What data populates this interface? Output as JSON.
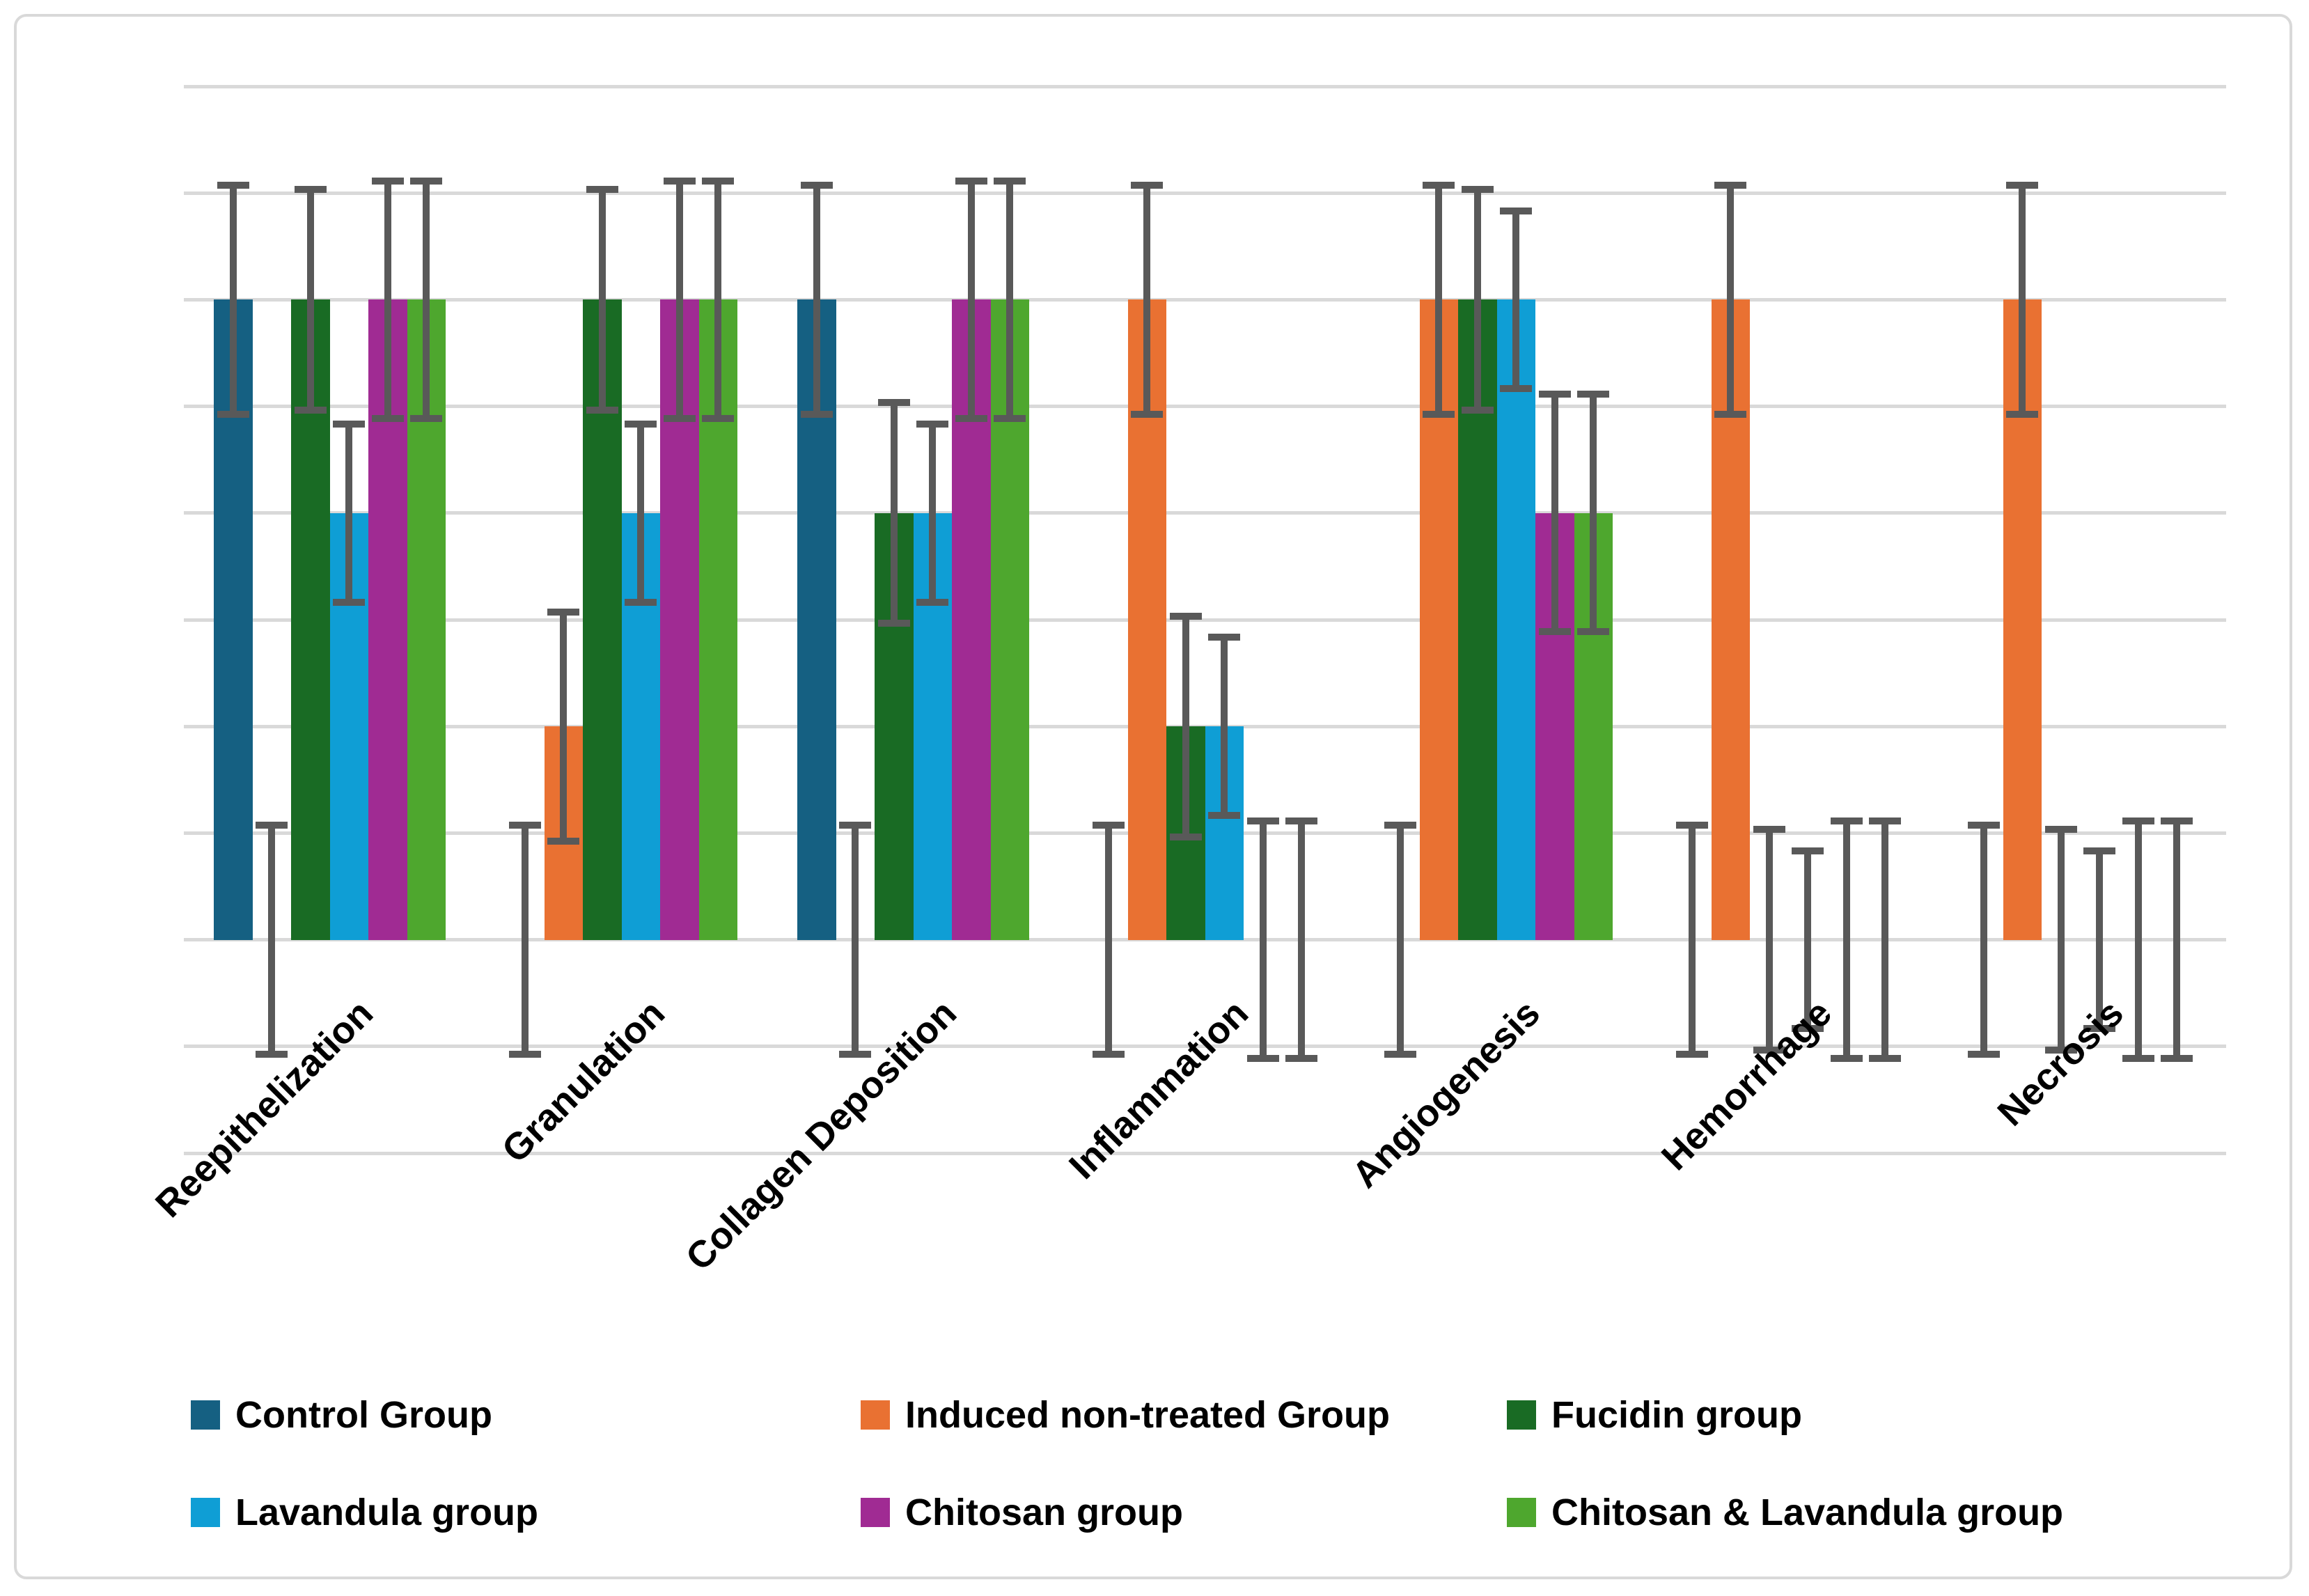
{
  "chart_data": {
    "type": "bar",
    "title": "",
    "xlabel": "",
    "ylabel": "",
    "categories": [
      "Reepithelization",
      "Granulation",
      "Collagen Deposition",
      "Inflammation",
      "Angiogenesis",
      "Hemorrhage",
      "Necrosis"
    ],
    "series": [
      {
        "name": "Control Group",
        "color": "#156082",
        "values": [
          3,
          0,
          3,
          0,
          0,
          0,
          0
        ],
        "errors": [
          0.55,
          0.55,
          0.55,
          0.55,
          0.55,
          0.55,
          0.55
        ]
      },
      {
        "name": "Induced non-treated Group",
        "color": "#E97132",
        "values": [
          0,
          1,
          0,
          3,
          3,
          3,
          3
        ],
        "errors": [
          0.55,
          0.55,
          0.55,
          0.55,
          0.55,
          0.55,
          0.55
        ]
      },
      {
        "name": "Fucidin group",
        "color": "#196B24",
        "values": [
          3,
          3,
          2,
          1,
          3,
          0,
          0
        ],
        "errors": [
          0.53,
          0.53,
          0.53,
          0.53,
          0.53,
          0.53,
          0.53
        ]
      },
      {
        "name": "Lavandula group",
        "color": "#0F9ED5",
        "values": [
          2,
          2,
          2,
          1,
          3,
          0,
          0
        ],
        "errors": [
          0.43,
          0.43,
          0.43,
          0.43,
          0.43,
          0.43,
          0.43
        ]
      },
      {
        "name": "Chitosan group",
        "color": "#A02B93",
        "values": [
          3,
          3,
          3,
          0,
          2,
          0,
          0
        ],
        "errors": [
          0.57,
          0.57,
          0.57,
          0.57,
          0.57,
          0.57,
          0.57
        ]
      },
      {
        "name": "Chitosan & Lavandula group",
        "color": "#4EA72E",
        "values": [
          3,
          3,
          3,
          0,
          2,
          0,
          0
        ],
        "errors": [
          0.57,
          0.57,
          0.57,
          0.57,
          0.57,
          0.57,
          0.57
        ]
      }
    ],
    "ylim": [
      -1,
      4
    ],
    "gridline_step": 0.5,
    "baseline": 0,
    "grid": true,
    "y_tick_labels_visible": false,
    "error_bar_color": "#595959",
    "gridline_color": "#D9D9D9",
    "legend_position": "bottom"
  }
}
